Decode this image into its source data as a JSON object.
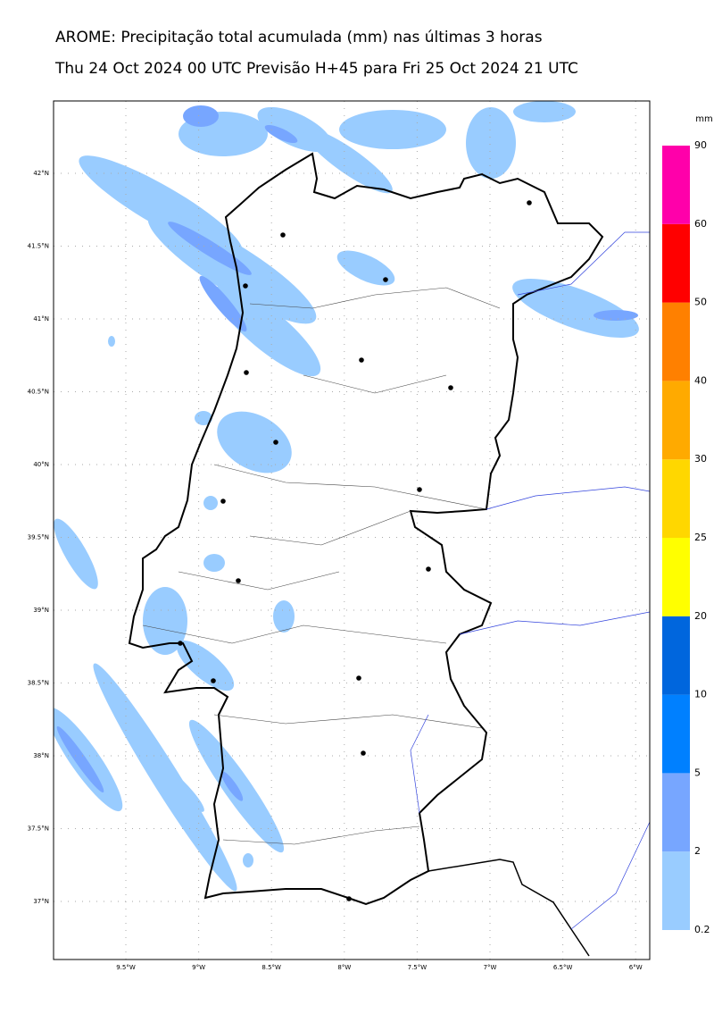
{
  "header": {
    "title": "AROME: Precipitação total acumulada (mm) nas últimas 3 horas",
    "subtitle": "Thu 24 Oct 2024 00 UTC Previsão H+45 para Fri 25 Oct 2024 21 UTC"
  },
  "map": {
    "lat_labels": [
      "42°N",
      "41.5°N",
      "41°N",
      "40.5°N",
      "40°N",
      "39.5°N",
      "39°N",
      "38.5°N",
      "38°N",
      "37.5°N",
      "37°N"
    ],
    "lon_labels": [
      "9.5°W",
      "9°W",
      "8.5°W",
      "8°W",
      "7.5°W",
      "7°W",
      "6.5°W",
      "6°W"
    ]
  },
  "colorbar": {
    "unit": "mm",
    "levels": [
      "0.2",
      "2",
      "5",
      "10",
      "20",
      "25",
      "30",
      "40",
      "50",
      "60",
      "90"
    ],
    "colors": [
      "#99ccff",
      "#77a6ff",
      "#0080ff",
      "#0066dd",
      "#ffff00",
      "#ffd700",
      "#ffaa00",
      "#ff8000",
      "#ff0000",
      "#ff00aa"
    ]
  }
}
